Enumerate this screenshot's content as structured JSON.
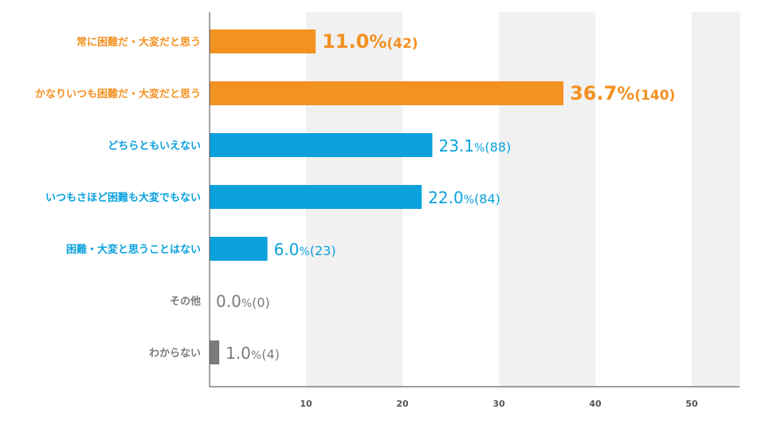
{
  "chart_data": {
    "type": "bar",
    "orientation": "horizontal",
    "categories": [
      "常に困難だ・大変だと思う",
      "かなりいつも困難だ・大変だと思う",
      "どちらともいえない",
      "いつもさほど困難も大変でもない",
      "困難・大変と思うことはない",
      "その他",
      "わからない"
    ],
    "values": [
      11.0,
      36.7,
      23.1,
      22.0,
      6.0,
      0.0,
      1.0
    ],
    "value_labels": [
      "11.0",
      "36.7",
      "23.1",
      "22.0",
      "6.0",
      "0.0",
      "1.0"
    ],
    "counts": [
      "(42)",
      "(140)",
      "(88)",
      "(84)",
      "(23)",
      "(0)",
      "(4)"
    ],
    "percent_sign": "%",
    "colors": [
      "#f39121",
      "#f39121",
      "#0aa1dd",
      "#0aa1dd",
      "#0aa1dd",
      "#7b7b7b",
      "#7b7b7b"
    ],
    "xlim": [
      0,
      55
    ],
    "xticks": [
      10,
      20,
      30,
      40,
      50
    ],
    "grid_bands": true,
    "title": "",
    "xlabel": "",
    "ylabel": ""
  }
}
